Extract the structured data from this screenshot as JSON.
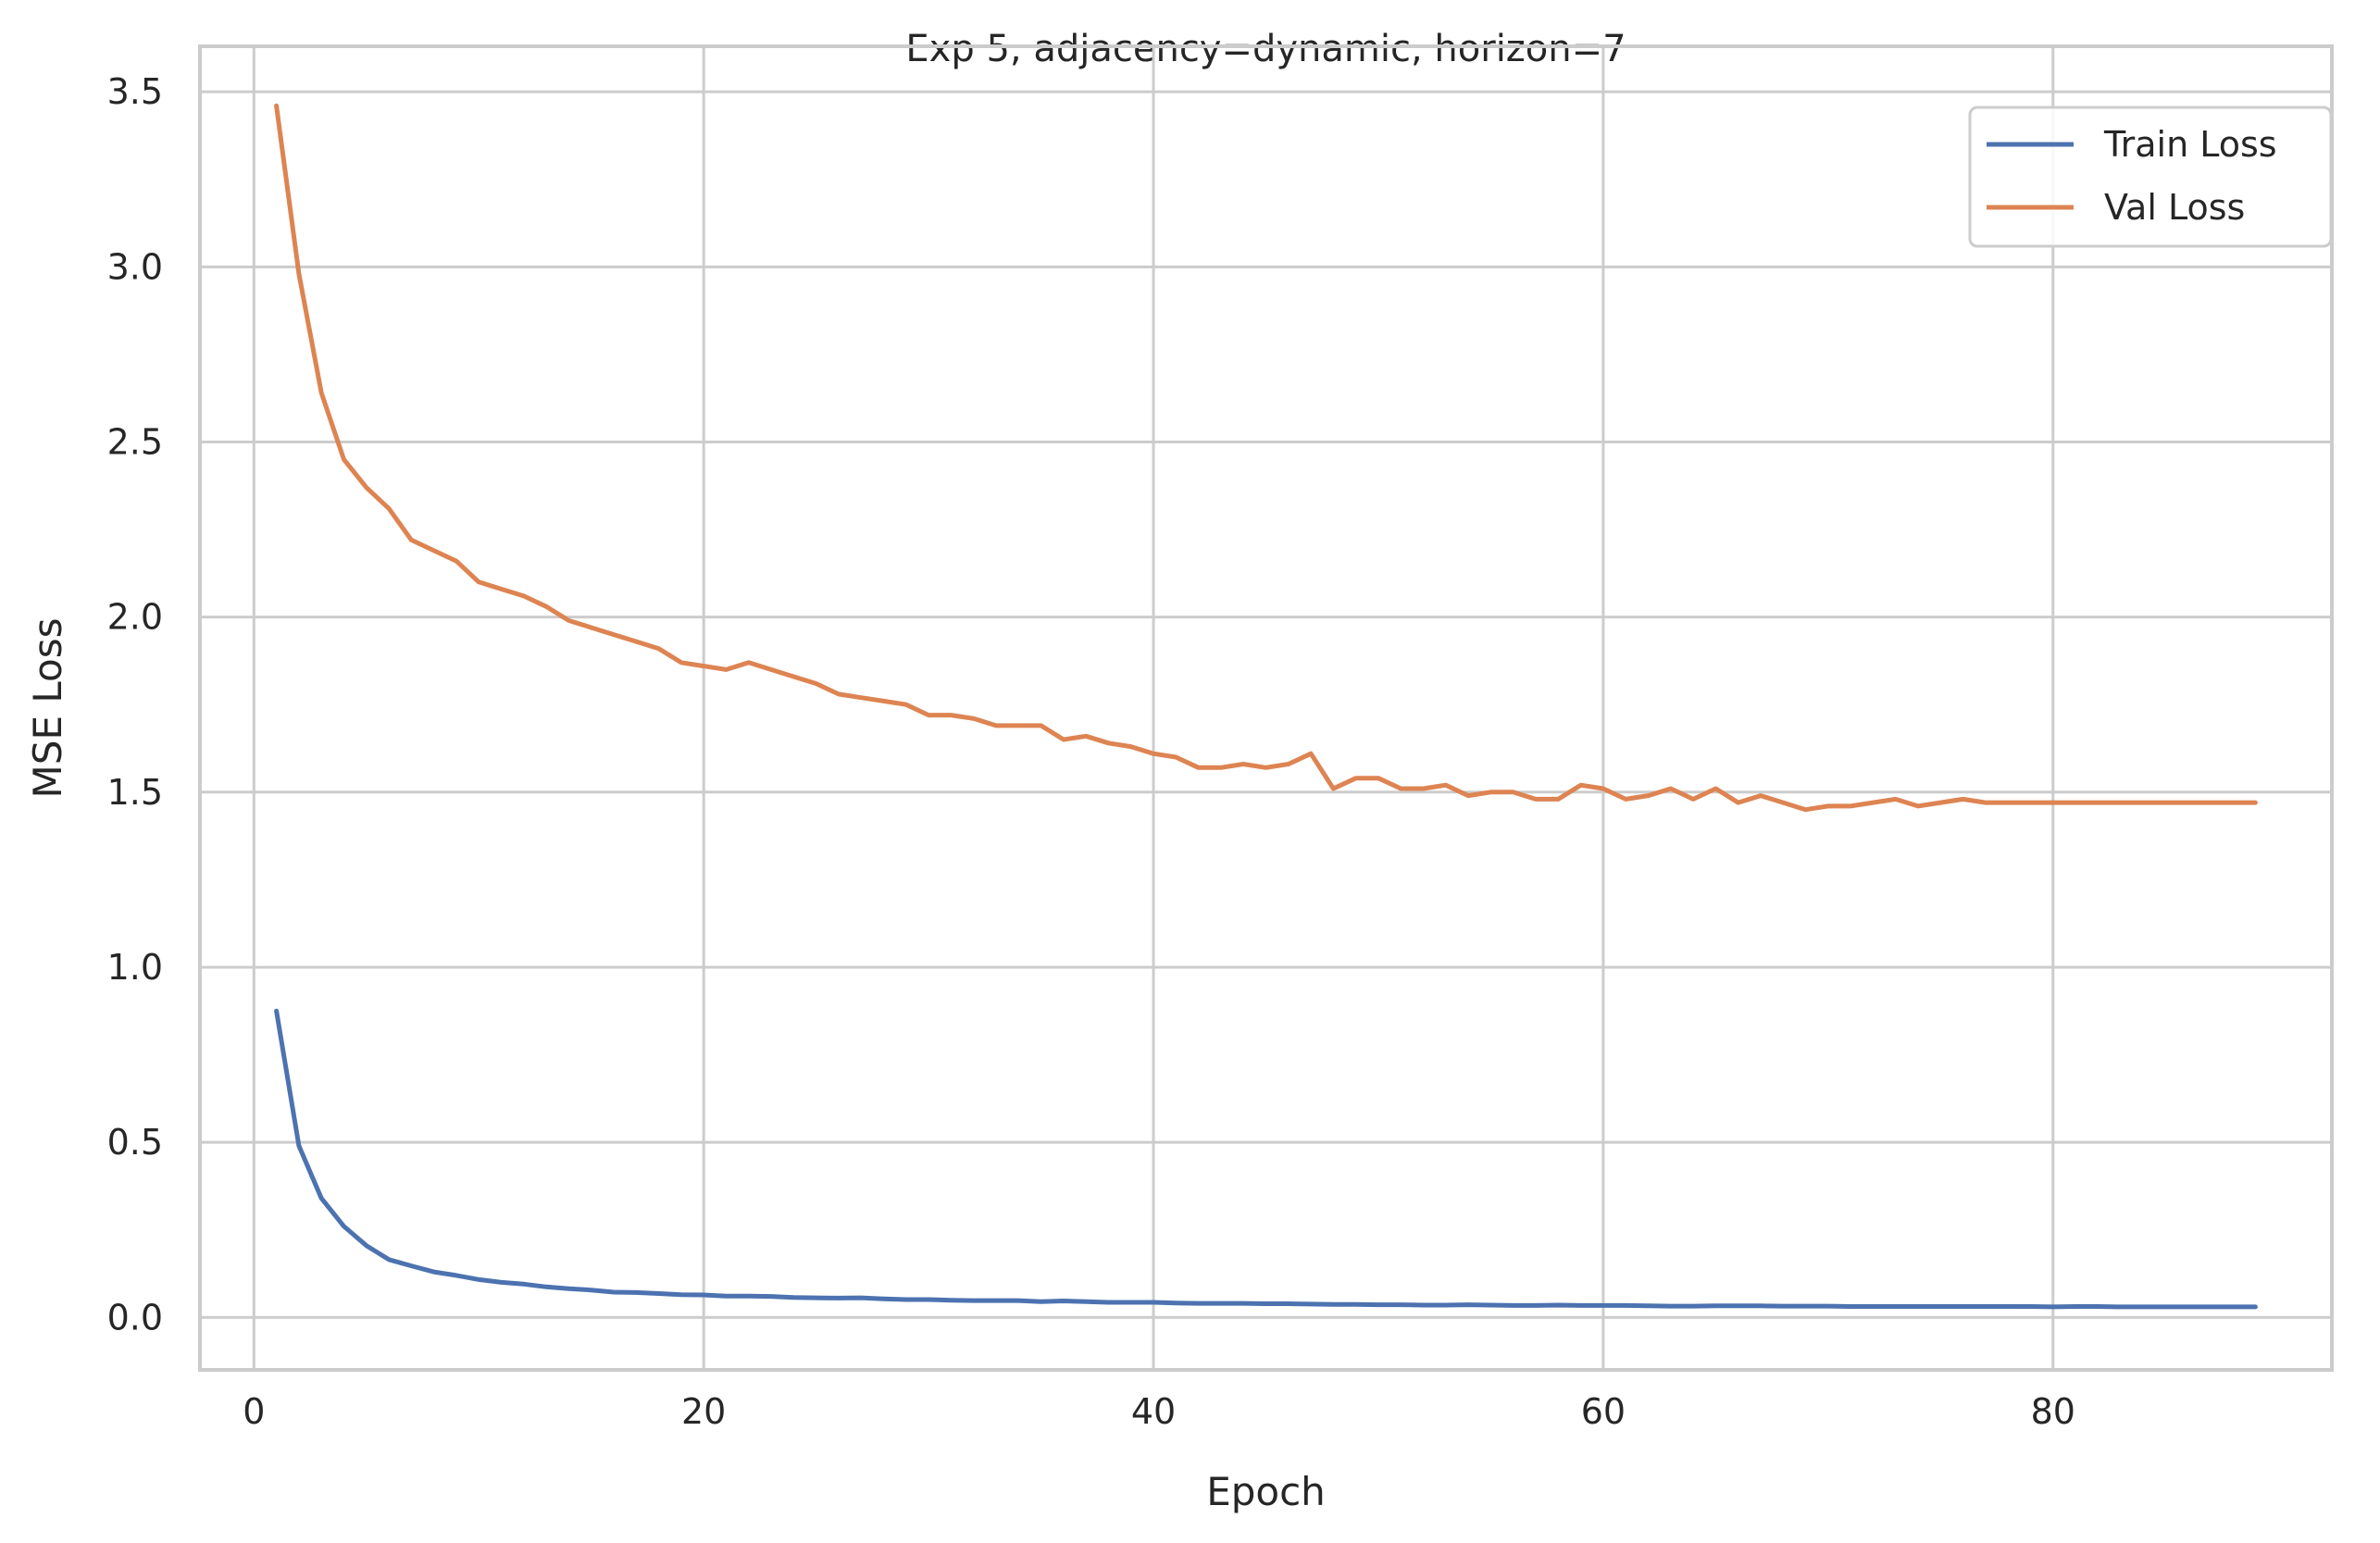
{
  "chart_data": {
    "type": "line",
    "title": "Exp 5, adjacency=dynamic, horizon=7",
    "xlabel": "Epoch",
    "ylabel": "MSE Loss",
    "xlim": [
      -2.4,
      92.4
    ],
    "ylim": [
      -0.15,
      3.63
    ],
    "xticks": [
      0,
      20,
      40,
      60,
      80
    ],
    "yticks": [
      0.0,
      0.5,
      1.0,
      1.5,
      2.0,
      2.5,
      3.0,
      3.5
    ],
    "xtick_labels": [
      "0",
      "20",
      "40",
      "60",
      "80"
    ],
    "ytick_labels": [
      "0.0",
      "0.5",
      "1.0",
      "1.5",
      "2.0",
      "2.5",
      "3.0",
      "3.5"
    ],
    "grid": true,
    "legend_position": "top-right",
    "series": [
      {
        "name": "Train Loss",
        "color": "#4c72b0",
        "x": [
          1,
          2,
          3,
          4,
          5,
          6,
          7,
          8,
          9,
          10,
          11,
          12,
          13,
          14,
          15,
          16,
          17,
          18,
          19,
          20,
          21,
          22,
          23,
          24,
          25,
          26,
          27,
          28,
          29,
          30,
          31,
          32,
          33,
          34,
          35,
          36,
          37,
          38,
          39,
          40,
          41,
          42,
          43,
          44,
          45,
          46,
          47,
          48,
          49,
          50,
          51,
          52,
          53,
          54,
          55,
          56,
          57,
          58,
          59,
          60,
          61,
          62,
          63,
          64,
          65,
          66,
          67,
          68,
          69,
          70,
          71,
          72,
          73,
          74,
          75,
          76,
          77,
          78,
          79,
          80,
          81,
          82,
          83,
          84,
          85,
          86,
          87,
          88,
          89
        ],
        "values": [
          0.875,
          0.49,
          0.34,
          0.26,
          0.205,
          0.165,
          0.147,
          0.13,
          0.12,
          0.108,
          0.1,
          0.095,
          0.087,
          0.082,
          0.078,
          0.072,
          0.071,
          0.068,
          0.065,
          0.064,
          0.061,
          0.061,
          0.06,
          0.057,
          0.056,
          0.055,
          0.056,
          0.053,
          0.051,
          0.051,
          0.049,
          0.048,
          0.048,
          0.048,
          0.045,
          0.047,
          0.045,
          0.043,
          0.043,
          0.043,
          0.041,
          0.04,
          0.04,
          0.04,
          0.039,
          0.039,
          0.038,
          0.037,
          0.037,
          0.036,
          0.036,
          0.035,
          0.035,
          0.036,
          0.035,
          0.034,
          0.034,
          0.035,
          0.034,
          0.034,
          0.034,
          0.033,
          0.032,
          0.032,
          0.033,
          0.033,
          0.033,
          0.032,
          0.032,
          0.032,
          0.031,
          0.031,
          0.031,
          0.031,
          0.031,
          0.031,
          0.031,
          0.031,
          0.031,
          0.03,
          0.031,
          0.031,
          0.03,
          0.03,
          0.03,
          0.03,
          0.03,
          0.03,
          0.03
        ]
      },
      {
        "name": "Val Loss",
        "color": "#dd8452",
        "x": [
          1,
          2,
          3,
          4,
          5,
          6,
          7,
          8,
          9,
          10,
          11,
          12,
          13,
          14,
          15,
          16,
          17,
          18,
          19,
          20,
          21,
          22,
          23,
          24,
          25,
          26,
          27,
          28,
          29,
          30,
          31,
          32,
          33,
          34,
          35,
          36,
          37,
          38,
          39,
          40,
          41,
          42,
          43,
          44,
          45,
          46,
          47,
          48,
          49,
          50,
          51,
          52,
          53,
          54,
          55,
          56,
          57,
          58,
          59,
          60,
          61,
          62,
          63,
          64,
          65,
          66,
          67,
          68,
          69,
          70,
          71,
          72,
          73,
          74,
          75,
          76,
          77,
          78,
          79,
          80,
          81,
          82,
          83,
          84,
          85,
          86,
          87,
          88,
          89
        ],
        "values": [
          3.46,
          2.98,
          2.64,
          2.45,
          2.37,
          2.31,
          2.22,
          2.19,
          2.16,
          2.1,
          2.08,
          2.06,
          2.03,
          1.99,
          1.97,
          1.95,
          1.93,
          1.91,
          1.87,
          1.86,
          1.85,
          1.87,
          1.85,
          1.83,
          1.81,
          1.78,
          1.77,
          1.76,
          1.75,
          1.72,
          1.72,
          1.71,
          1.69,
          1.69,
          1.69,
          1.65,
          1.66,
          1.64,
          1.63,
          1.61,
          1.6,
          1.57,
          1.57,
          1.58,
          1.57,
          1.58,
          1.61,
          1.51,
          1.54,
          1.54,
          1.51,
          1.51,
          1.52,
          1.49,
          1.5,
          1.5,
          1.48,
          1.48,
          1.52,
          1.51,
          1.48,
          1.49,
          1.51,
          1.48,
          1.51,
          1.47,
          1.49,
          1.47,
          1.45,
          1.46,
          1.46,
          1.47,
          1.48,
          1.46,
          1.47,
          1.48,
          1.47,
          1.47,
          1.47,
          1.47,
          1.47,
          1.47,
          1.47,
          1.47,
          1.47,
          1.47,
          1.47,
          1.47,
          1.47
        ]
      }
    ]
  }
}
